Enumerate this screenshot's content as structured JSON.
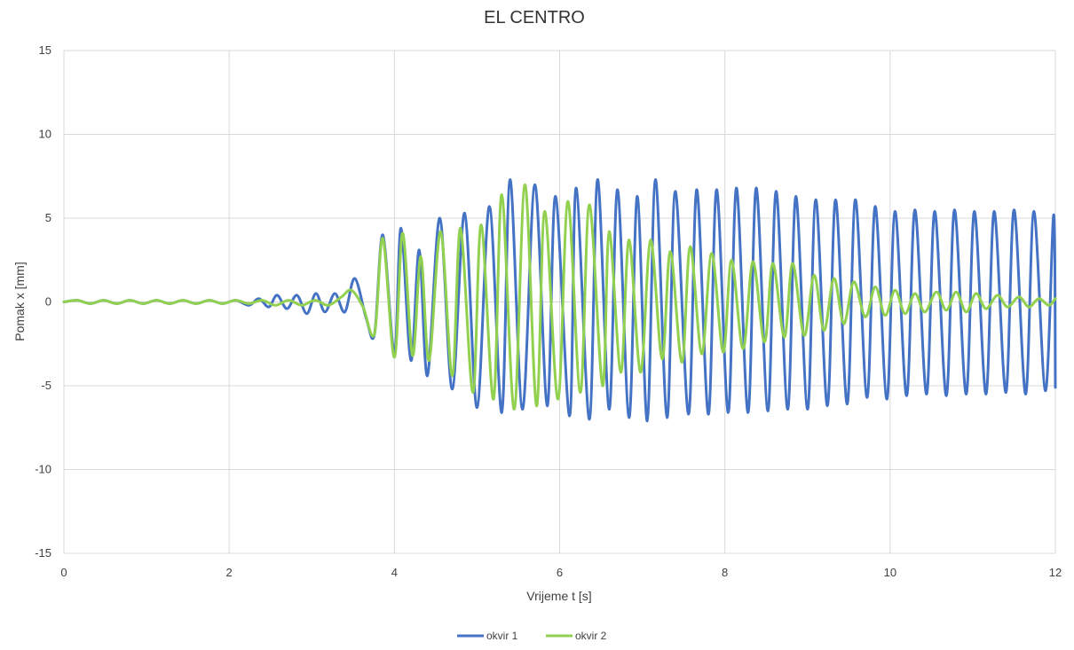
{
  "chart_data": {
    "type": "line",
    "title": "EL CENTRO",
    "xlabel": "Vrijeme t [s]",
    "ylabel": "Pomak x [mm]",
    "xlim": [
      0,
      12
    ],
    "ylim": [
      -15,
      15
    ],
    "x_ticks": [
      "0",
      "2",
      "4",
      "6",
      "8",
      "10",
      "12"
    ],
    "y_ticks": [
      "15",
      "10",
      "5",
      "0",
      "-5",
      "-10",
      "-15"
    ],
    "grid": true,
    "legend_position": "bottom",
    "series": [
      {
        "name": "okvir 1",
        "color": "#4472c4",
        "points": [
          [
            0.0,
            0.0
          ],
          [
            0.16,
            0.1
          ],
          [
            0.32,
            -0.1
          ],
          [
            0.48,
            0.1
          ],
          [
            0.64,
            -0.1
          ],
          [
            0.8,
            0.1
          ],
          [
            0.96,
            -0.1
          ],
          [
            1.12,
            0.1
          ],
          [
            1.28,
            -0.1
          ],
          [
            1.44,
            0.1
          ],
          [
            1.6,
            -0.1
          ],
          [
            1.76,
            0.1
          ],
          [
            1.92,
            -0.1
          ],
          [
            2.08,
            0.1
          ],
          [
            2.24,
            -0.2
          ],
          [
            2.36,
            0.2
          ],
          [
            2.48,
            -0.3
          ],
          [
            2.58,
            0.4
          ],
          [
            2.7,
            -0.4
          ],
          [
            2.82,
            0.4
          ],
          [
            2.94,
            -0.7
          ],
          [
            3.05,
            0.5
          ],
          [
            3.16,
            -0.6
          ],
          [
            3.28,
            0.5
          ],
          [
            3.4,
            -0.6
          ],
          [
            3.52,
            1.4
          ],
          [
            3.66,
            -1.0
          ],
          [
            3.76,
            -1.9
          ],
          [
            3.86,
            4.0
          ],
          [
            4.0,
            -3.0
          ],
          [
            4.08,
            4.4
          ],
          [
            4.2,
            -3.5
          ],
          [
            4.3,
            3.1
          ],
          [
            4.4,
            -4.4
          ],
          [
            4.55,
            5.0
          ],
          [
            4.7,
            -5.2
          ],
          [
            4.85,
            5.3
          ],
          [
            5.0,
            -6.3
          ],
          [
            5.15,
            5.7
          ],
          [
            5.3,
            -6.6
          ],
          [
            5.4,
            7.3
          ],
          [
            5.55,
            -6.4
          ],
          [
            5.7,
            7.0
          ],
          [
            5.85,
            -6.2
          ],
          [
            5.95,
            6.3
          ],
          [
            6.12,
            -6.8
          ],
          [
            6.2,
            6.8
          ],
          [
            6.36,
            -7.0
          ],
          [
            6.46,
            7.3
          ],
          [
            6.6,
            -6.4
          ],
          [
            6.7,
            6.7
          ],
          [
            6.84,
            -6.9
          ],
          [
            6.94,
            6.3
          ],
          [
            7.06,
            -7.1
          ],
          [
            7.16,
            7.3
          ],
          [
            7.3,
            -6.9
          ],
          [
            7.4,
            6.6
          ],
          [
            7.56,
            -6.7
          ],
          [
            7.66,
            6.7
          ],
          [
            7.8,
            -6.7
          ],
          [
            7.9,
            6.7
          ],
          [
            8.04,
            -6.6
          ],
          [
            8.14,
            6.8
          ],
          [
            8.28,
            -6.6
          ],
          [
            8.38,
            6.8
          ],
          [
            8.52,
            -6.5
          ],
          [
            8.62,
            6.6
          ],
          [
            8.76,
            -6.4
          ],
          [
            8.86,
            6.3
          ],
          [
            9.0,
            -6.4
          ],
          [
            9.1,
            6.1
          ],
          [
            9.24,
            -6.2
          ],
          [
            9.34,
            6.1
          ],
          [
            9.48,
            -6.1
          ],
          [
            9.58,
            6.1
          ],
          [
            9.72,
            -5.7
          ],
          [
            9.82,
            5.7
          ],
          [
            9.96,
            -5.8
          ],
          [
            10.06,
            5.4
          ],
          [
            10.2,
            -5.6
          ],
          [
            10.3,
            5.5
          ],
          [
            10.44,
            -5.5
          ],
          [
            10.54,
            5.4
          ],
          [
            10.68,
            -5.6
          ],
          [
            10.78,
            5.5
          ],
          [
            10.92,
            -5.5
          ],
          [
            11.02,
            5.4
          ],
          [
            11.16,
            -5.5
          ],
          [
            11.26,
            5.4
          ],
          [
            11.4,
            -5.4
          ],
          [
            11.5,
            5.5
          ],
          [
            11.64,
            -5.5
          ],
          [
            11.74,
            5.4
          ],
          [
            11.88,
            -5.3
          ],
          [
            11.98,
            5.2
          ],
          [
            12.0,
            -5.1
          ]
        ]
      },
      {
        "name": "okvir 2",
        "color": "#92d050",
        "points": [
          [
            0.0,
            0.0
          ],
          [
            0.16,
            0.1
          ],
          [
            0.32,
            -0.1
          ],
          [
            0.48,
            0.1
          ],
          [
            0.64,
            -0.1
          ],
          [
            0.8,
            0.1
          ],
          [
            0.96,
            -0.1
          ],
          [
            1.12,
            0.1
          ],
          [
            1.28,
            -0.1
          ],
          [
            1.44,
            0.1
          ],
          [
            1.6,
            -0.1
          ],
          [
            1.76,
            0.1
          ],
          [
            1.92,
            -0.1
          ],
          [
            2.08,
            0.1
          ],
          [
            2.24,
            -0.1
          ],
          [
            2.4,
            0.1
          ],
          [
            2.56,
            -0.2
          ],
          [
            2.72,
            0.1
          ],
          [
            2.88,
            -0.2
          ],
          [
            3.04,
            0.1
          ],
          [
            3.2,
            -0.2
          ],
          [
            3.36,
            0.3
          ],
          [
            3.48,
            0.7
          ],
          [
            3.62,
            -0.3
          ],
          [
            3.76,
            -1.9
          ],
          [
            3.86,
            3.8
          ],
          [
            4.0,
            -3.3
          ],
          [
            4.1,
            4.1
          ],
          [
            4.22,
            -3.2
          ],
          [
            4.32,
            2.7
          ],
          [
            4.42,
            -3.5
          ],
          [
            4.56,
            4.2
          ],
          [
            4.7,
            -4.4
          ],
          [
            4.8,
            4.4
          ],
          [
            4.95,
            -5.4
          ],
          [
            5.05,
            4.6
          ],
          [
            5.2,
            -5.8
          ],
          [
            5.3,
            6.4
          ],
          [
            5.45,
            -6.4
          ],
          [
            5.58,
            7.0
          ],
          [
            5.72,
            -6.2
          ],
          [
            5.82,
            5.4
          ],
          [
            5.98,
            -5.8
          ],
          [
            6.1,
            6.0
          ],
          [
            6.25,
            -5.4
          ],
          [
            6.36,
            5.8
          ],
          [
            6.52,
            -5.0
          ],
          [
            6.6,
            4.2
          ],
          [
            6.74,
            -4.2
          ],
          [
            6.84,
            3.7
          ],
          [
            6.98,
            -4.2
          ],
          [
            7.1,
            3.7
          ],
          [
            7.24,
            -3.4
          ],
          [
            7.34,
            3.0
          ],
          [
            7.48,
            -3.6
          ],
          [
            7.58,
            3.3
          ],
          [
            7.72,
            -3.1
          ],
          [
            7.84,
            2.9
          ],
          [
            7.98,
            -3.0
          ],
          [
            8.08,
            2.5
          ],
          [
            8.22,
            -2.8
          ],
          [
            8.34,
            2.4
          ],
          [
            8.48,
            -2.4
          ],
          [
            8.58,
            2.3
          ],
          [
            8.72,
            -2.1
          ],
          [
            8.82,
            2.3
          ],
          [
            8.96,
            -2.0
          ],
          [
            9.08,
            1.6
          ],
          [
            9.2,
            -1.7
          ],
          [
            9.32,
            1.4
          ],
          [
            9.44,
            -1.3
          ],
          [
            9.56,
            1.2
          ],
          [
            9.7,
            -0.9
          ],
          [
            9.82,
            0.9
          ],
          [
            9.94,
            -0.8
          ],
          [
            10.06,
            0.7
          ],
          [
            10.18,
            -0.7
          ],
          [
            10.3,
            0.5
          ],
          [
            10.42,
            -0.6
          ],
          [
            10.56,
            0.6
          ],
          [
            10.68,
            -0.5
          ],
          [
            10.8,
            0.6
          ],
          [
            10.92,
            -0.6
          ],
          [
            11.04,
            0.5
          ],
          [
            11.16,
            -0.4
          ],
          [
            11.3,
            0.4
          ],
          [
            11.42,
            -0.3
          ],
          [
            11.56,
            0.3
          ],
          [
            11.68,
            -0.3
          ],
          [
            11.8,
            0.2
          ],
          [
            11.92,
            -0.2
          ],
          [
            12.0,
            0.2
          ]
        ]
      }
    ]
  }
}
